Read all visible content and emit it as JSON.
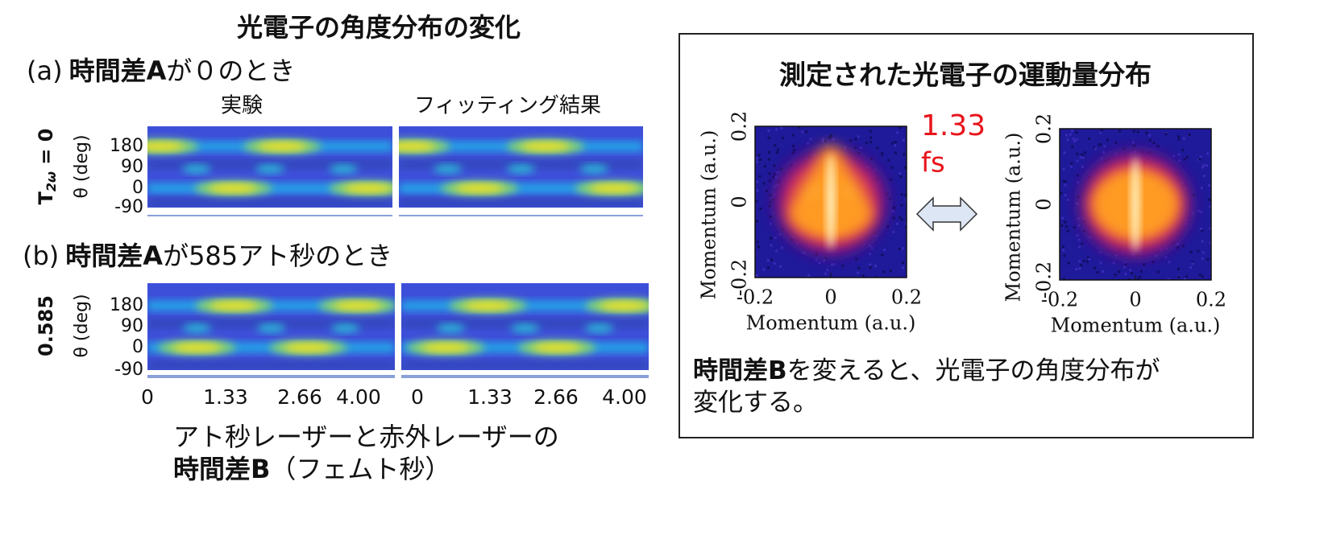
{
  "left": {
    "title": "光電子の角度分布の変化",
    "panel_a": {
      "label": "(a)",
      "bold": "時間差A",
      "rest": "が０のとき",
      "row_label": {
        "main": "T",
        "sub": "2ω",
        "rest": " = 0"
      }
    },
    "column_titles": [
      "実験",
      "フィッティング結果"
    ],
    "y_axis_label": "θ (deg)",
    "y_ticks": [
      "180",
      "90",
      "0",
      "-90"
    ],
    "panel_b": {
      "label": "(b)",
      "bold": "時間差A",
      "rest": "が585アト秒のとき",
      "row_label": "0.585"
    },
    "x_ticks": [
      "0",
      "1.33",
      "2.66",
      "4.00"
    ],
    "x_caption": {
      "line1": "アト秒レーザーと赤外レーザーの",
      "bold": "時間差B",
      "rest": "（フェムト秒）"
    }
  },
  "right": {
    "title": "測定された光電子の運動量分布",
    "annotation": {
      "value": "1.33",
      "unit": "fs"
    },
    "axis_label": "Momentum (a.u.)",
    "ticks": [
      "-0.2",
      "0",
      "0.2"
    ],
    "caption": {
      "bold": "時間差B",
      "line1": "を変えると、光電子の角度分布が",
      "line2": "変化する。"
    }
  }
}
